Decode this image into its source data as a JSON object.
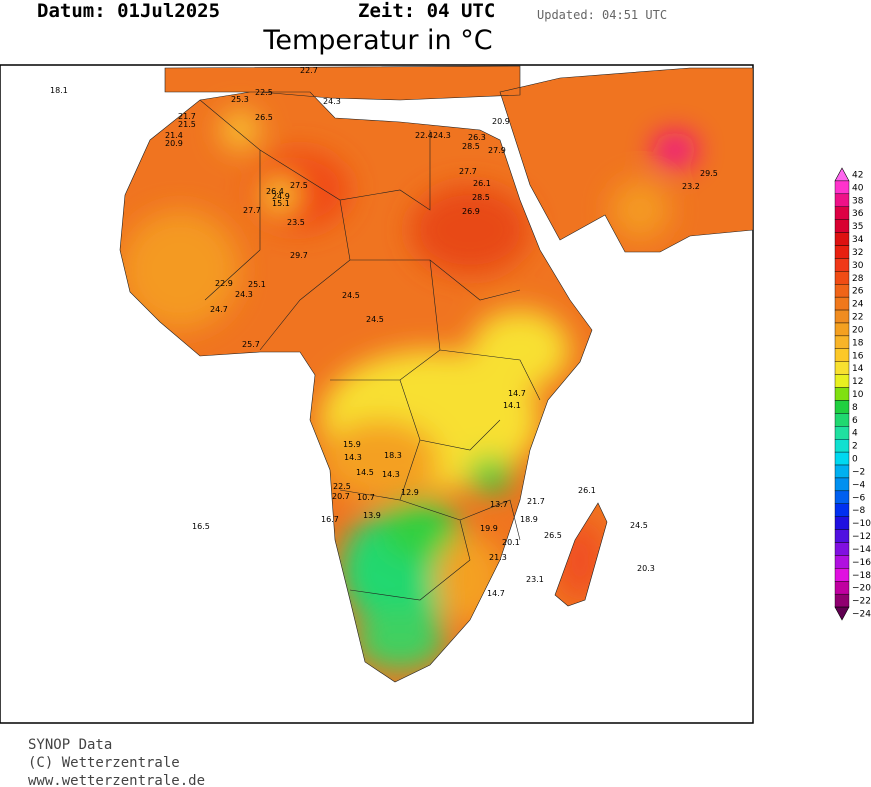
{
  "header": {
    "date": "Datum:  01Jul2025",
    "time": "Zeit: 04  UTC",
    "updated": "Updated: 04:51 UTC",
    "title": "Temperatur in °C"
  },
  "colorbar": {
    "labels": [
      "42",
      "40",
      "38",
      "36",
      "35",
      "34",
      "32",
      "30",
      "28",
      "26",
      "24",
      "22",
      "20",
      "18",
      "16",
      "14",
      "12",
      "10",
      "8",
      "6",
      "4",
      "2",
      "0",
      "−2",
      "−4",
      "−6",
      "−8",
      "−10",
      "−12",
      "−14",
      "−16",
      "−18",
      "−20",
      "−22",
      "−24"
    ],
    "colors": [
      "#ff66ee",
      "#ff33cc",
      "#ee1188",
      "#dd0044",
      "#d80030",
      "#dd1111",
      "#e82010",
      "#f03818",
      "#f04c14",
      "#f06418",
      "#f0781c",
      "#f08c20",
      "#f4a020",
      "#f8b428",
      "#fcc828",
      "#f8e030",
      "#e8f020",
      "#80e010",
      "#20d040",
      "#20d870",
      "#20e0a0",
      "#10e0d0",
      "#00d8f0",
      "#00b0f0",
      "#0090f0",
      "#0060f0",
      "#0030f0",
      "#2010e0",
      "#5010e0",
      "#8010e0",
      "#b010e0",
      "#e010e0",
      "#c000a0",
      "#900070",
      "#600050"
    ]
  },
  "stations": [
    "22.5",
    "26.5",
    "21.7",
    "21.5",
    "21.4",
    "20.9",
    "27.5",
    "26.4",
    "24.9",
    "15.1",
    "27.7",
    "23.5",
    "29.7",
    "22.9",
    "25.1",
    "24.3",
    "24.7",
    "25.7",
    "24.5",
    "24.5",
    "22.4",
    "24.3",
    "26.3",
    "28.5",
    "27.9",
    "27.7",
    "26.1",
    "28.5",
    "26.9",
    "20.9",
    "14.7",
    "14.1",
    "15.9",
    "14.3",
    "18.3",
    "14.5",
    "14.3",
    "22.5",
    "20.7",
    "10.7",
    "12.9",
    "13.9",
    "16.7",
    "16.5",
    "13.7",
    "19.9",
    "18.9",
    "21.7",
    "20.1",
    "21.3",
    "26.1",
    "24.5",
    "26.5",
    "23.1",
    "20.3",
    "14.7",
    "29.5",
    "23.2",
    "25.3",
    "22.7",
    "24.3",
    "18.1"
  ],
  "footer": {
    "line1": "SYNOP Data",
    "line2": "(C) Wetterzentrale",
    "line3": "www.wetterzentrale.de"
  }
}
